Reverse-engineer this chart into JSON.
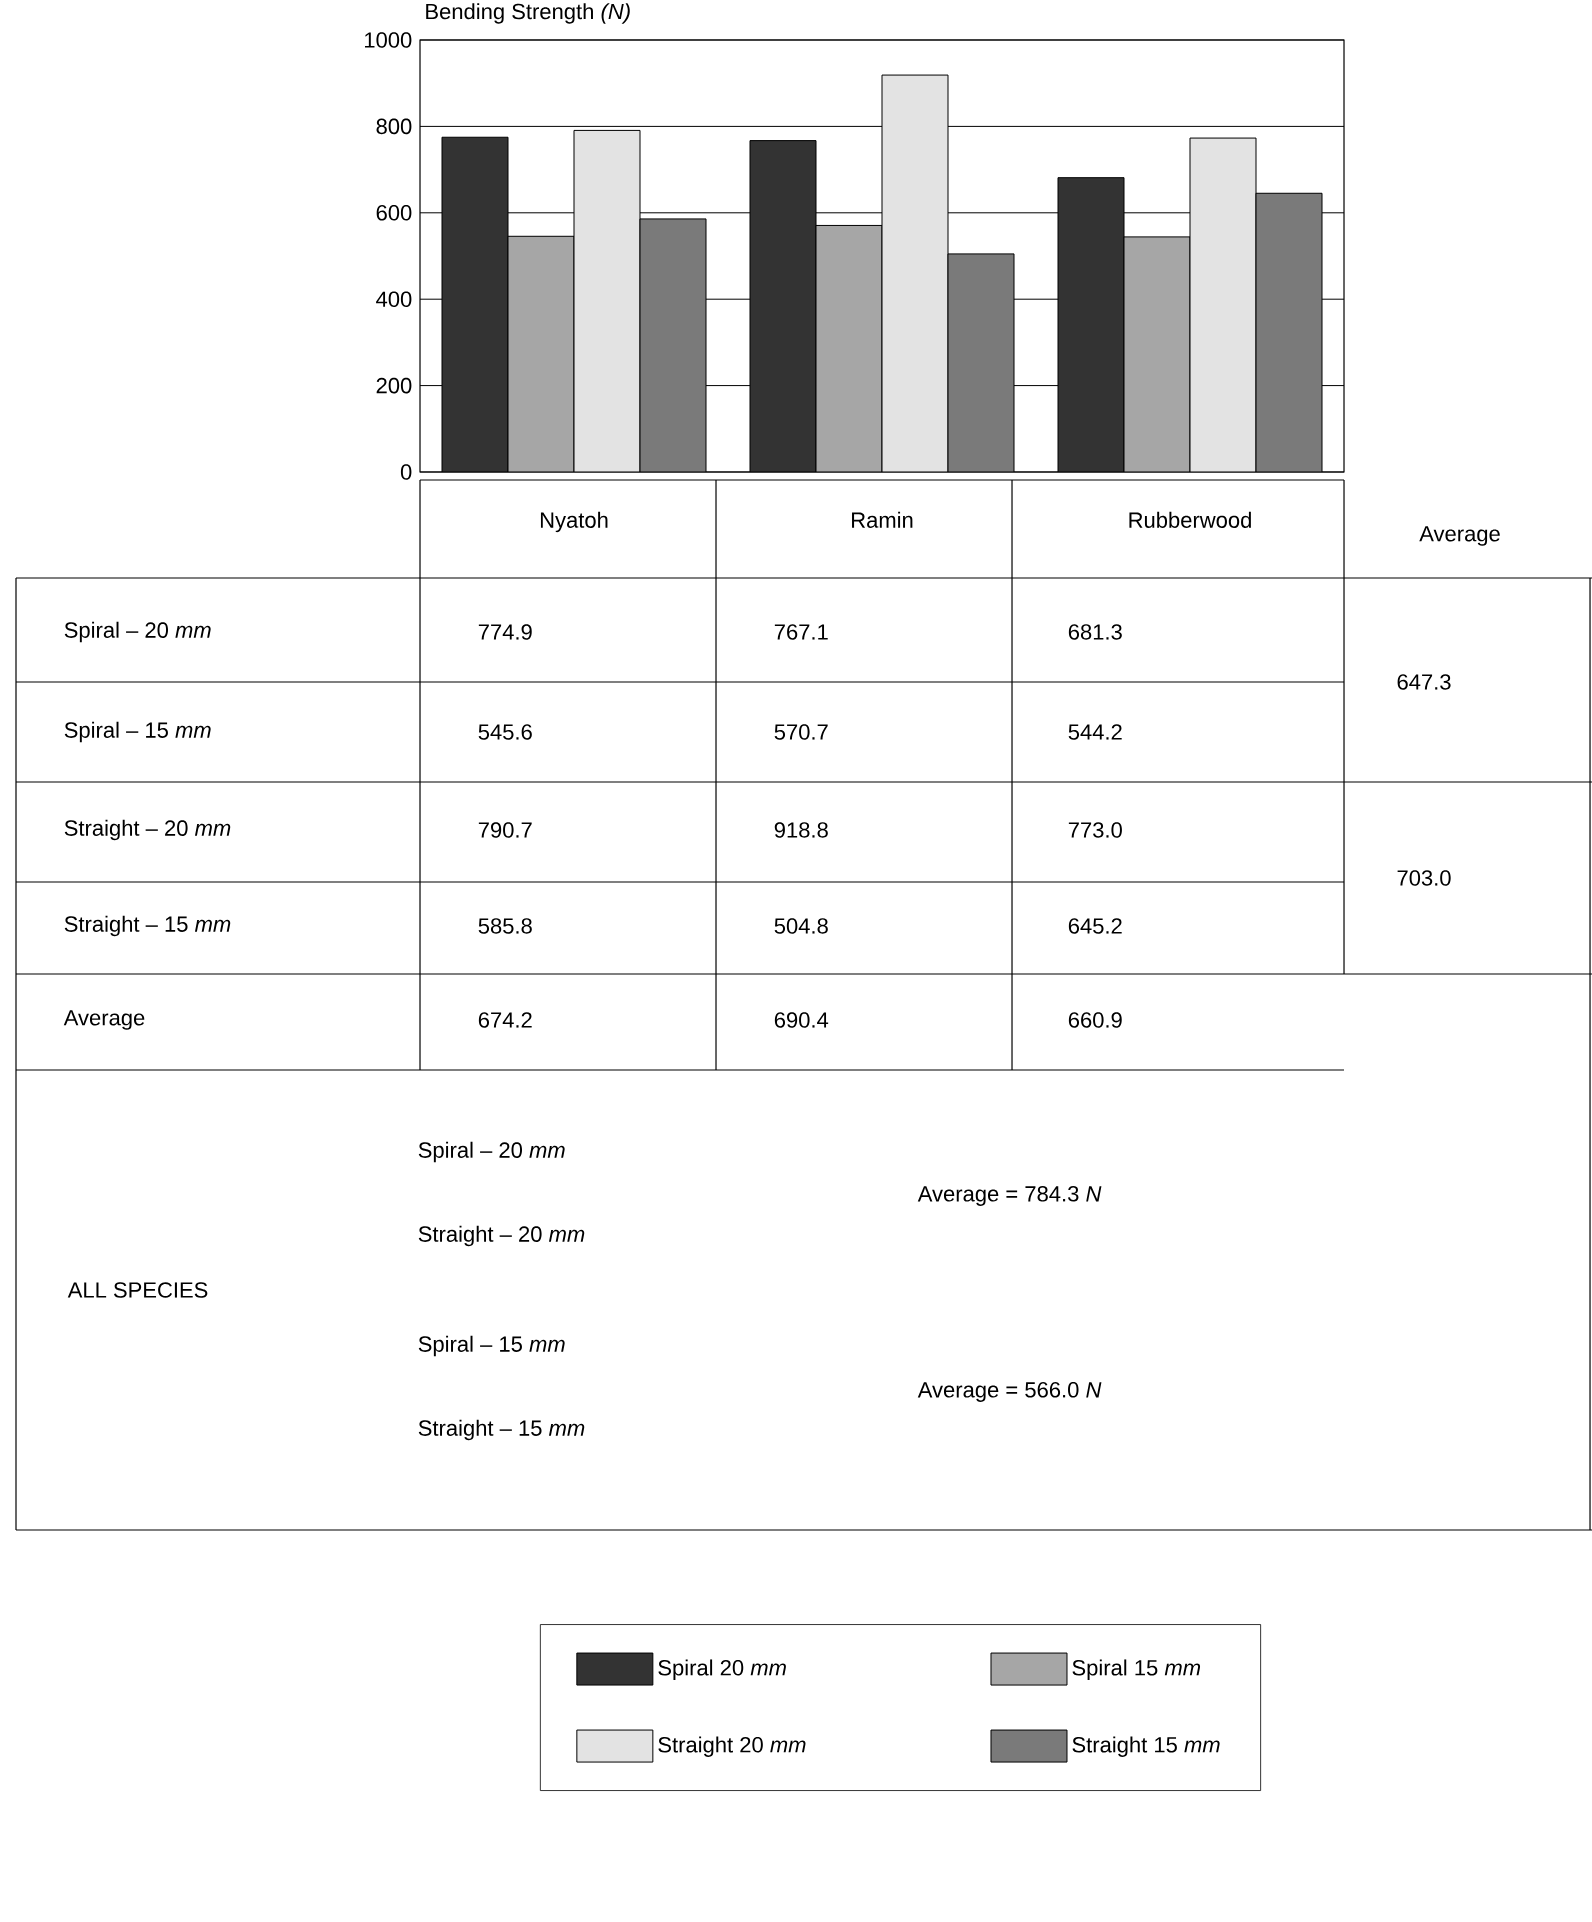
{
  "chart_data": {
    "type": "bar",
    "title": "Bending Strength *(N)*",
    "categories": [
      "Nyatoh",
      "Ramin",
      "Rubberwood"
    ],
    "series": [
      {
        "name": "Spiral  20 *mm*",
        "color": "#333333",
        "values": [
          774.9,
          767.1,
          681.3
        ],
        "value_labels": [
          "774.9",
          "767.1",
          "681.3"
        ]
      },
      {
        "name": "Spiral  15 *mm*",
        "color": "#a6a6a6",
        "values": [
          545.6,
          570.7,
          544.2
        ],
        "value_labels": [
          "545.6",
          "570.7",
          "544.2"
        ]
      },
      {
        "name": "Straight  20 *mm*",
        "color": "#e3e3e3",
        "values": [
          790.7,
          918.8,
          773.0
        ],
        "value_labels": [
          "790.7",
          "918.8",
          "773.0"
        ]
      },
      {
        "name": "Straight  15 *mm*",
        "color": "#7a7a7a",
        "values": [
          585.8,
          504.8,
          645.2
        ],
        "value_labels": [
          "585.8",
          "504.8",
          "645.2"
        ]
      }
    ],
    "ylim": [
      0,
      1000
    ],
    "yticks": [
      0,
      200,
      400,
      600,
      800,
      1000
    ],
    "grid": "y",
    "legend": "bottom",
    "annotations": [
      "Average",
      "Spiral – 20 *mm*",
      "Spiral – 15 *mm*",
      "Straight – 20 *mm*",
      "Straight – 15 *mm*",
      "Average",
      "647.3",
      "703.0",
      "674.2",
      "690.4",
      "660.9",
      "Spiral – 20 *mm*",
      "Straight – 20 *mm*",
      "ALL SPECIES",
      "Spiral – 15 *mm*",
      "Straight – 15 *mm*",
      "Average  =  784.3  *N*",
      "Average  =  566.0  *N*"
    ]
  }
}
